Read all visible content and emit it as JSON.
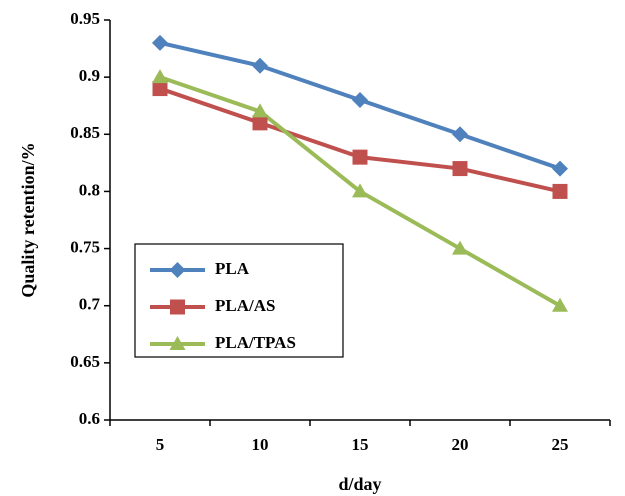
{
  "chart_data": {
    "type": "line",
    "title": "",
    "xlabel": "d/day",
    "ylabel": "Quality retention/%",
    "x": [
      5,
      10,
      15,
      20,
      25
    ],
    "ylim": [
      0.6,
      0.95
    ],
    "y_ticks": [
      "0.6",
      "0.65",
      "0.7",
      "0.75",
      "0.8",
      "0.85",
      "0.9",
      "0.95"
    ],
    "x_ticks": [
      "5",
      "10",
      "15",
      "20",
      "25"
    ],
    "grid": false,
    "legend_position": "bottom-left",
    "series": [
      {
        "name": "PLA",
        "values": [
          0.93,
          0.91,
          0.88,
          0.85,
          0.82
        ],
        "color": "#4F81BD",
        "marker": "diamond"
      },
      {
        "name": "PLA/AS",
        "values": [
          0.89,
          0.86,
          0.83,
          0.82,
          0.8
        ],
        "color": "#C0504D",
        "marker": "square"
      },
      {
        "name": "PLA/TPAS",
        "values": [
          0.9,
          0.87,
          0.8,
          0.75,
          0.7
        ],
        "color": "#9BBB59",
        "marker": "triangle"
      }
    ]
  }
}
